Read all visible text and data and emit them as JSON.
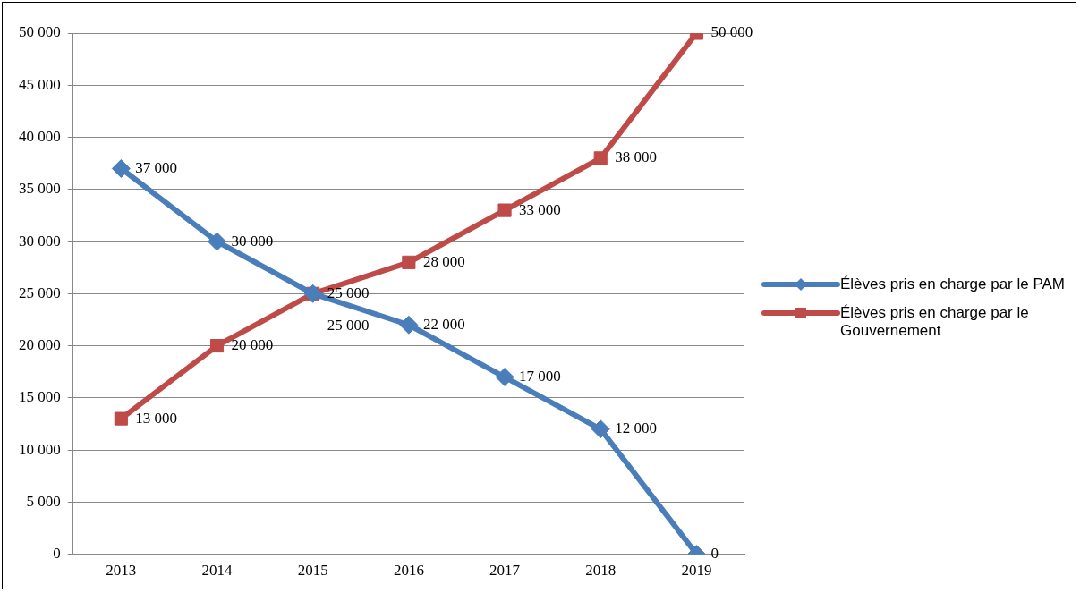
{
  "chart_data": {
    "type": "line",
    "categories": [
      "2013",
      "2014",
      "2015",
      "2016",
      "2017",
      "2018",
      "2019"
    ],
    "series": [
      {
        "name": "Élèves pris en charge par le PAM",
        "color": "#4a7ebb",
        "marker": "diamond",
        "values": [
          37000,
          30000,
          25000,
          22000,
          17000,
          12000,
          0
        ]
      },
      {
        "name": "Élèves pris en charge par le Gouvernement",
        "color": "#be4b48",
        "marker": "square",
        "values": [
          13000,
          20000,
          25000,
          28000,
          33000,
          38000,
          50000
        ]
      }
    ],
    "ylim": [
      0,
      50000
    ],
    "yticks": [
      {
        "value": 0,
        "label": "0"
      },
      {
        "value": 5000,
        "label": "5 000"
      },
      {
        "value": 10000,
        "label": "10 000"
      },
      {
        "value": 15000,
        "label": "15 000"
      },
      {
        "value": 20000,
        "label": "20 000"
      },
      {
        "value": 25000,
        "label": "25 000"
      },
      {
        "value": 30000,
        "label": "30 000"
      },
      {
        "value": 35000,
        "label": "35 000"
      },
      {
        "value": 40000,
        "label": "40 000"
      },
      {
        "value": 45000,
        "label": "45 000"
      },
      {
        "value": 50000,
        "label": "50 000"
      }
    ],
    "grid": "y",
    "legend": "right",
    "data_labels": true
  }
}
